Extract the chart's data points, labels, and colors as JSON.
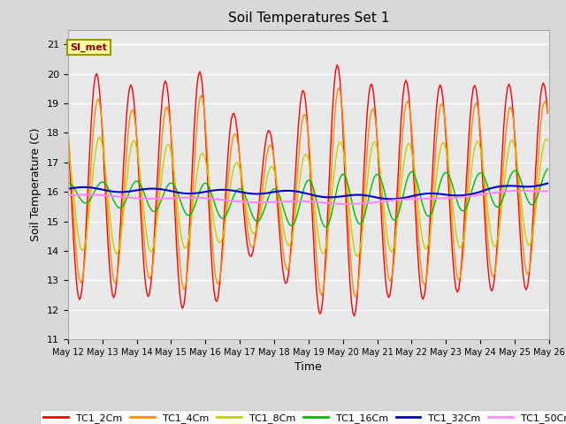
{
  "title": "Soil Temperatures Set 1",
  "xlabel": "Time",
  "ylabel": "Soil Temperature (C)",
  "ylim": [
    11.0,
    21.5
  ],
  "yticks": [
    11.0,
    12.0,
    13.0,
    14.0,
    15.0,
    16.0,
    17.0,
    18.0,
    19.0,
    20.0,
    21.0
  ],
  "fig_bg_color": "#d8d8d8",
  "plot_bg": "#e8e8e8",
  "annotation_text": "SI_met",
  "annotation_color": "#8B0000",
  "annotation_bg": "#FFFF99",
  "series_colors": {
    "TC1_2Cm": "#FF0000",
    "TC1_4Cm": "#FF8C00",
    "TC1_8Cm": "#CCCC00",
    "TC1_16Cm": "#00BB00",
    "TC1_32Cm": "#0000CC",
    "TC1_50Cm": "#FF88FF"
  },
  "x_tick_labels": [
    "May 12",
    "May 13",
    "May 14",
    "May 15",
    "May 16",
    "May 17",
    "May 18",
    "May 19",
    "May 20",
    "May 21",
    "May 22",
    "May 23",
    "May 24",
    "May 25",
    "May 26"
  ],
  "num_days": 14,
  "points_per_day": 24
}
